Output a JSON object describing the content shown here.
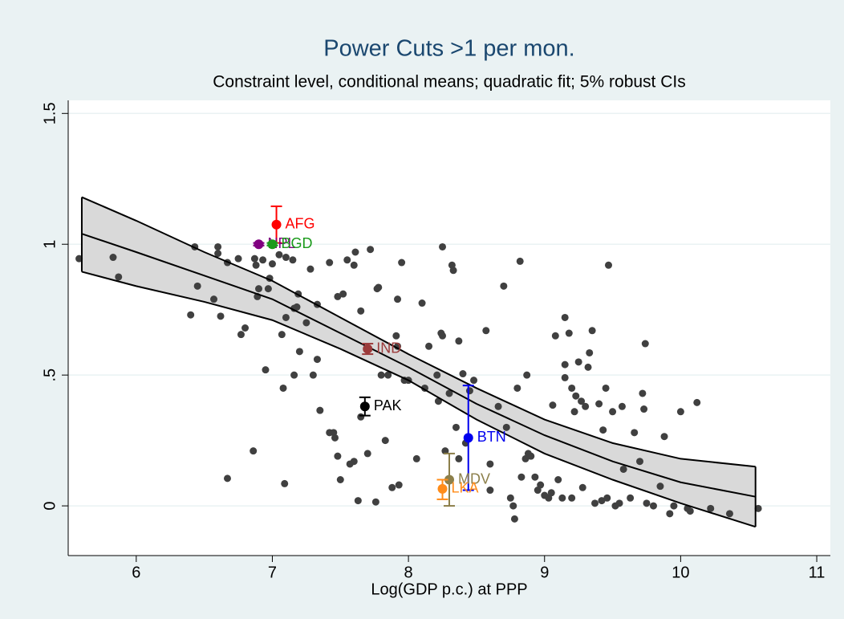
{
  "chart_data": {
    "type": "scatter",
    "title": "Power Cuts >1 per mon.",
    "subtitle": "Constraint level, conditional means; quadratic fit; 5% robust CIs",
    "x_label": "Log(GDP p.c.) at PPP",
    "xlim": [
      5.5,
      11.1
    ],
    "ylim": [
      -0.19,
      1.55
    ],
    "xticks": [
      6,
      7,
      8,
      9,
      10,
      11
    ],
    "yticks": [
      0,
      {
        "value": 0.5,
        "label": ".5"
      },
      1,
      1.5
    ],
    "grid": true,
    "color": "#404040",
    "x": [
      5.58,
      5.83,
      5.87,
      6.4,
      6.43,
      6.45,
      6.57,
      6.6,
      6.6,
      6.62,
      6.67,
      6.67,
      6.75,
      6.77,
      6.8,
      6.86,
      6.87,
      6.88,
      6.89,
      6.9,
      6.93,
      6.95,
      6.97,
      6.98,
      7.0,
      7.05,
      7.07,
      7.08,
      7.09,
      7.1,
      7.1,
      7.15,
      7.16,
      7.16,
      7.18,
      7.19,
      7.2,
      7.25,
      7.28,
      7.3,
      7.33,
      7.33,
      7.35,
      7.42,
      7.42,
      7.45,
      7.46,
      7.48,
      7.48,
      7.5,
      7.52,
      7.55,
      7.57,
      7.6,
      7.6,
      7.61,
      7.63,
      7.65,
      7.65,
      7.7,
      7.72,
      7.76,
      7.77,
      7.78,
      7.8,
      7.83,
      7.85,
      7.88,
      7.91,
      7.92,
      7.92,
      7.93,
      7.95,
      7.97,
      8.0,
      8.06,
      8.1,
      8.12,
      8.15,
      8.21,
      8.22,
      8.24,
      8.25,
      8.25,
      8.27,
      8.3,
      8.32,
      8.33,
      8.35,
      8.37,
      8.37,
      8.4,
      8.42,
      8.45,
      8.48,
      8.57,
      8.6,
      8.6,
      8.66,
      8.7,
      8.72,
      8.75,
      8.77,
      8.78,
      8.8,
      8.82,
      8.83,
      8.86,
      8.87,
      8.88,
      8.9,
      8.93,
      8.95,
      8.97,
      9.0,
      9.03,
      9.05,
      9.06,
      9.08,
      9.1,
      9.13,
      9.15,
      9.15,
      9.15,
      9.18,
      9.2,
      9.2,
      9.22,
      9.23,
      9.25,
      9.27,
      9.28,
      9.3,
      9.32,
      9.33,
      9.35,
      9.37,
      9.4,
      9.42,
      9.43,
      9.45,
      9.46,
      9.47,
      9.5,
      9.52,
      9.55,
      9.57,
      9.58,
      9.63,
      9.66,
      9.7,
      9.72,
      9.73,
      9.74,
      9.75,
      9.8,
      9.85,
      9.88,
      9.92,
      9.95,
      10.0,
      10.05,
      10.07,
      10.12,
      10.22,
      10.36,
      10.57
    ],
    "values": [
      0.945,
      0.95,
      0.875,
      0.73,
      0.99,
      0.84,
      0.79,
      0.99,
      0.965,
      0.725,
      0.105,
      0.93,
      0.945,
      0.655,
      0.68,
      0.21,
      0.945,
      0.92,
      0.8,
      0.83,
      0.94,
      0.52,
      0.83,
      0.87,
      0.925,
      0.96,
      0.655,
      0.45,
      0.085,
      0.95,
      0.72,
      0.94,
      0.5,
      0.755,
      0.76,
      0.81,
      0.59,
      0.7,
      0.905,
      0.5,
      0.56,
      0.77,
      0.365,
      0.93,
      0.28,
      0.28,
      0.26,
      0.8,
      0.19,
      0.1,
      0.81,
      0.94,
      0.16,
      0.92,
      0.17,
      0.97,
      0.02,
      0.745,
      0.34,
      0.2,
      0.98,
      0.015,
      0.83,
      0.835,
      0.5,
      0.25,
      0.5,
      0.07,
      0.65,
      0.79,
      0.61,
      0.08,
      0.93,
      0.48,
      0.48,
      0.18,
      0.775,
      0.45,
      0.61,
      0.5,
      0.4,
      0.66,
      0.99,
      0.65,
      0.21,
      0.43,
      0.92,
      0.9,
      0.3,
      0.63,
      0.18,
      0.505,
      0.24,
      0.44,
      0.48,
      0.67,
      0.16,
      0.06,
      0.38,
      0.84,
      0.3,
      0.03,
      0.0,
      -0.05,
      0.45,
      0.935,
      0.11,
      0.18,
      0.5,
      0.2,
      0.19,
      0.11,
      0.06,
      0.08,
      0.04,
      0.03,
      0.05,
      0.385,
      0.65,
      0.1,
      0.03,
      0.54,
      0.72,
      0.49,
      0.66,
      0.03,
      0.45,
      0.36,
      0.42,
      0.55,
      0.4,
      0.07,
      0.38,
      0.53,
      0.585,
      0.67,
      0.01,
      0.39,
      0.02,
      0.29,
      0.45,
      0.03,
      0.92,
      0.36,
      0.0,
      0.01,
      0.38,
      0.14,
      0.03,
      0.28,
      0.17,
      0.43,
      0.37,
      0.62,
      0.01,
      0.0,
      0.075,
      0.265,
      -0.03,
      0.0,
      0.36,
      -0.01,
      -0.02,
      0.395,
      -0.01,
      -0.03,
      -0.01
    ],
    "fit": {
      "x": [
        5.6,
        6,
        6.5,
        7,
        7.5,
        8,
        8.5,
        9,
        9.5,
        10,
        10.55
      ],
      "values": [
        1.04,
        0.97,
        0.88,
        0.79,
        0.66,
        0.53,
        0.39,
        0.27,
        0.17,
        0.09,
        0.035
      ],
      "upper": [
        1.18,
        1.09,
        0.97,
        0.86,
        0.72,
        0.58,
        0.45,
        0.33,
        0.24,
        0.18,
        0.15
      ],
      "lower": [
        0.895,
        0.84,
        0.78,
        0.71,
        0.6,
        0.48,
        0.33,
        0.2,
        0.1,
        0.01,
        -0.08
      ],
      "fill": "#d9d9d9"
    },
    "countries": [
      {
        "label": "AFG",
        "x": 7.03,
        "y": 1.075,
        "lo": 1.005,
        "hi": 1.145,
        "color": "#ff0000"
      },
      {
        "label": "NPL",
        "x": 6.9,
        "y": 1.0,
        "lo": 0.995,
        "hi": 1.005,
        "color": "#800080"
      },
      {
        "label": "BGD",
        "x": 7.0,
        "y": 1.0,
        "lo": 0.995,
        "hi": 1.005,
        "color": "#1a9a1a"
      },
      {
        "label": "IND",
        "x": 7.7,
        "y": 0.6,
        "lo": 0.58,
        "hi": 0.62,
        "color": "#9b3a3a"
      },
      {
        "label": "PAK",
        "x": 7.68,
        "y": 0.38,
        "lo": 0.345,
        "hi": 0.415,
        "color": "#000000"
      },
      {
        "label": "BTN",
        "x": 8.44,
        "y": 0.26,
        "lo": 0.06,
        "hi": 0.46,
        "color": "#0000ee"
      },
      {
        "label": "MDV",
        "x": 8.3,
        "y": 0.1,
        "lo": 0.0,
        "hi": 0.2,
        "color": "#8c7f4a"
      },
      {
        "label": "LKA",
        "x": 8.25,
        "y": 0.065,
        "lo": 0.025,
        "hi": 0.1,
        "color": "#ff8c1a"
      }
    ]
  }
}
